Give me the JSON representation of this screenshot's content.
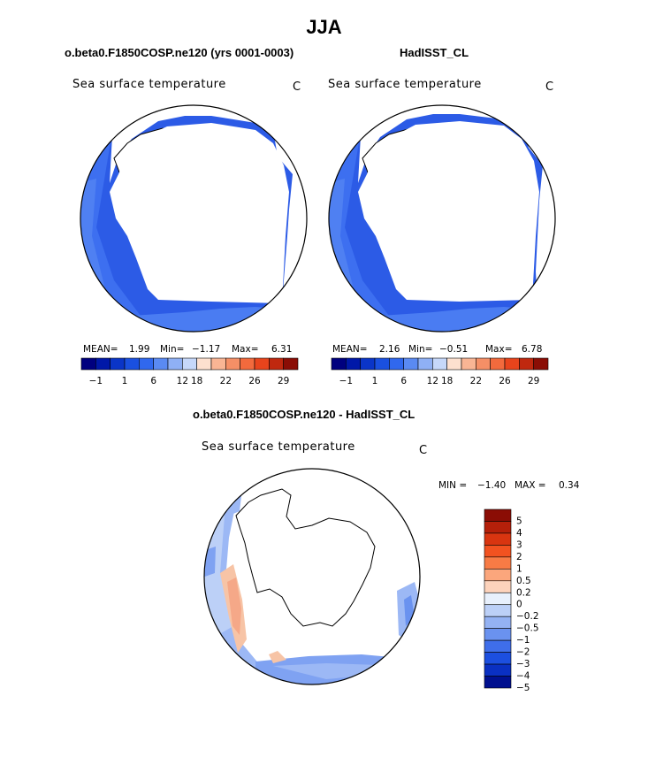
{
  "title": "JJA",
  "panel_left": {
    "header": "o.beta0.F1850COSP.ne120 (yrs 0001-0003)",
    "variable": "Sea surface temperature",
    "units": "C",
    "mean_label": "MEAN=",
    "mean": "1.99",
    "min_label": "Min=",
    "min": "−1.17",
    "max_label": "Max=",
    "max": "6.31"
  },
  "panel_right": {
    "header": "HadISST_CL",
    "variable": "Sea surface temperature",
    "units": "C",
    "mean_label": "MEAN=",
    "mean": "2.16",
    "min_label": "Min=",
    "min": "−0.51",
    "max_label": "Max=",
    "max": "6.78"
  },
  "abs_colorbar": {
    "colors": [
      "#00007f",
      "#0018a8",
      "#0a35c8",
      "#1a50e0",
      "#3068ee",
      "#5a8af2",
      "#8fb0f5",
      "#c6d8fa",
      "#fde0cf",
      "#f9b594",
      "#f58f66",
      "#f26a3d",
      "#e8441c",
      "#c0280f",
      "#8b0d05"
    ],
    "tick_labels": [
      "−1",
      "1",
      "6",
      "12",
      "18",
      "22",
      "26",
      "29"
    ]
  },
  "diff_panel": {
    "header": "o.beta0.F1850COSP.ne120 - HadISST_CL",
    "variable": "Sea surface temperature",
    "units": "C",
    "min_label": "MIN =",
    "min": "−1.40",
    "max_label": "MAX =",
    "max": "0.34"
  },
  "diff_colorbar": {
    "colors": [
      "#8b0d05",
      "#b5200a",
      "#d93510",
      "#f25220",
      "#f77b45",
      "#fba67c",
      "#fdd3bc",
      "#e8f0fc",
      "#bcd0f7",
      "#94b2f3",
      "#6a92ef",
      "#3f6eea",
      "#1c4fe0",
      "#0a30c2",
      "#00108f"
    ],
    "labels": [
      "5",
      "4",
      "3",
      "2",
      "1",
      "0.5",
      "0.2",
      "0",
      "−0.2",
      "−0.5",
      "−1",
      "−2",
      "−3",
      "−4",
      "−5"
    ]
  }
}
